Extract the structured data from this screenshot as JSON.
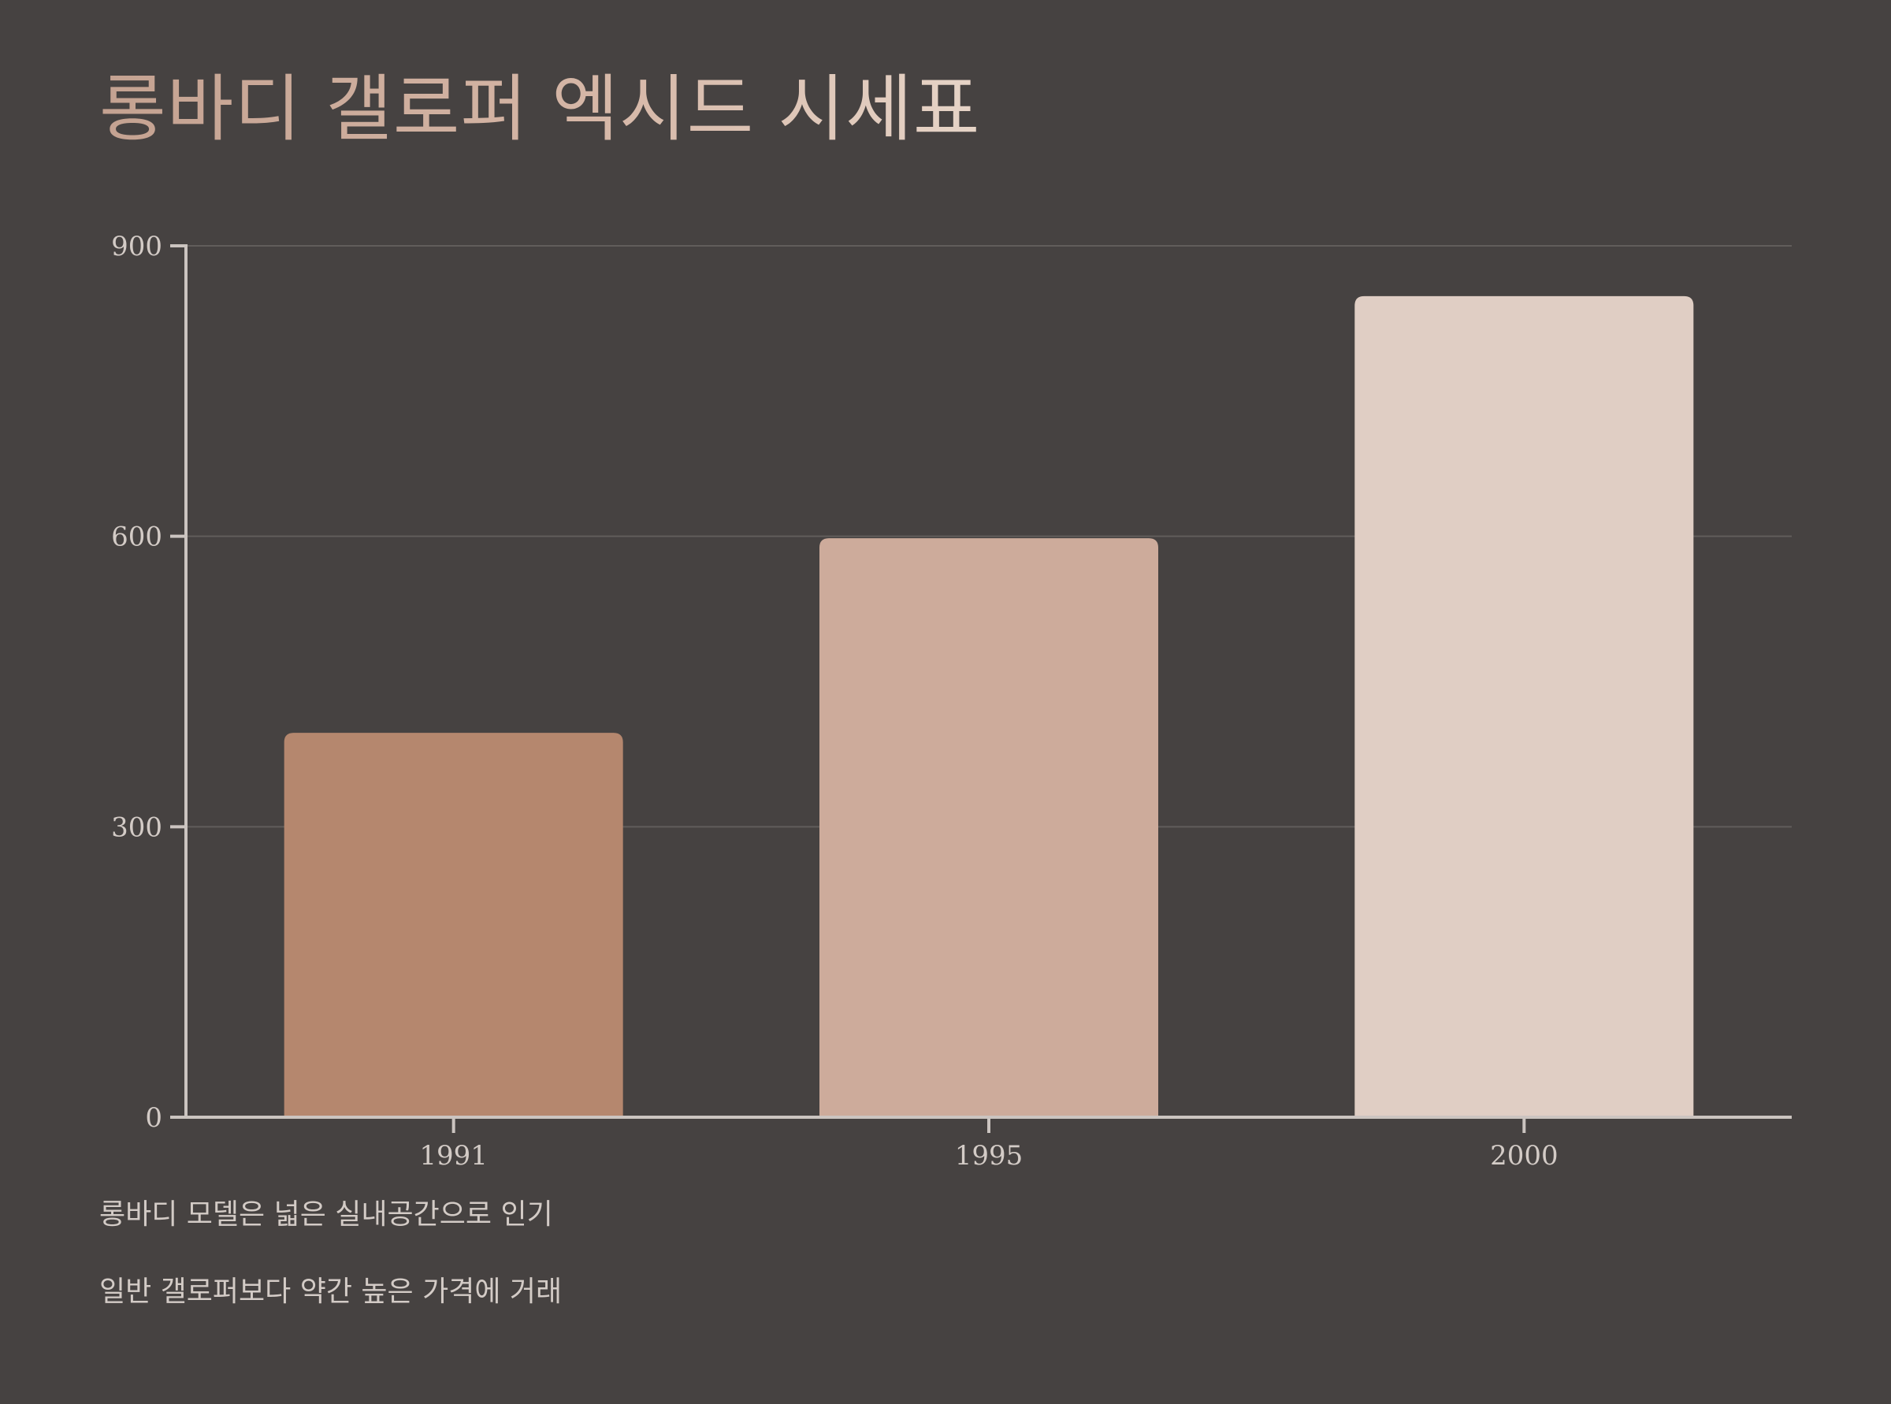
{
  "chart_data": {
    "type": "bar",
    "title": "롱바디 갤로퍼 엑시드 시세표",
    "xlabel": "",
    "ylabel": "",
    "categories": [
      "1991",
      "1995",
      "2000"
    ],
    "values": [
      397,
      598,
      848
    ],
    "ylim": [
      0,
      900
    ],
    "yticks": [
      "0",
      "300",
      "600",
      "900"
    ],
    "grid": true,
    "legend": "none",
    "colors": [
      "#b5876e",
      "#cdab9b",
      "#e0cec4"
    ],
    "annotations": [
      "롱바디 모델은 넓은 실내공간으로 인기",
      "일반 갤로퍼보다 약간 높은 가격에 거래"
    ]
  },
  "theme": {
    "background": "#464241",
    "axis_color": "#cbc4c0",
    "grid_color": "#615d5b",
    "text_color": "#d3cbc6"
  }
}
